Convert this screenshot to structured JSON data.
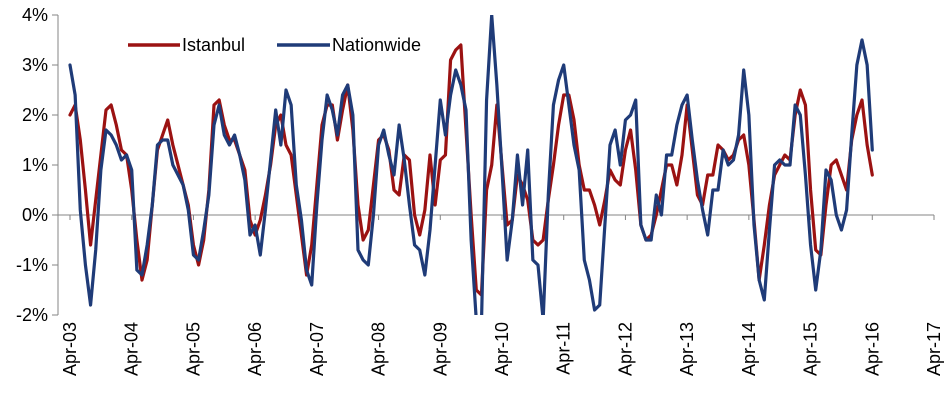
{
  "chart_data": {
    "type": "line",
    "x_tick_labels": [
      "Apr-03",
      "Apr-04",
      "Apr-05",
      "Apr-06",
      "Apr-07",
      "Apr-08",
      "Apr-09",
      "Apr-10",
      "Apr-11",
      "Apr-12",
      "Apr-13",
      "Apr-14",
      "Apr-15",
      "Apr-16",
      "Apr-17"
    ],
    "y_tick_labels": [
      "4%",
      "3%",
      "2%",
      "1%",
      "0%",
      "-1%",
      "-2%"
    ],
    "ylim": [
      -2,
      4
    ],
    "y_unit": "%",
    "grid": false,
    "legend_position": "top-left",
    "series": [
      {
        "name": "Istanbul",
        "color": "#9b1212",
        "values": [
          2.0,
          2.2,
          1.5,
          0.5,
          -0.6,
          0.3,
          1.2,
          2.1,
          2.2,
          1.8,
          1.3,
          1.2,
          0.5,
          -0.5,
          -1.3,
          -0.9,
          0.2,
          1.3,
          1.6,
          1.9,
          1.4,
          1.0,
          0.6,
          0.2,
          -0.6,
          -1.0,
          -0.5,
          0.5,
          2.2,
          2.3,
          1.8,
          1.5,
          1.5,
          1.2,
          0.9,
          -0.1,
          -0.4,
          -0.1,
          0.4,
          1.0,
          1.8,
          2.0,
          1.4,
          1.2,
          0.4,
          -0.4,
          -1.2,
          -0.6,
          0.6,
          1.8,
          2.2,
          2.2,
          1.5,
          2.1,
          2.6,
          1.7,
          0.2,
          -0.5,
          -0.3,
          0.6,
          1.5,
          1.6,
          1.3,
          0.5,
          0.4,
          1.2,
          1.1,
          0.0,
          -0.4,
          0.1,
          1.2,
          0.2,
          1.1,
          1.2,
          3.1,
          3.3,
          3.4,
          1.7,
          0.0,
          -1.5,
          -1.6,
          0.5,
          1.0,
          2.2,
          1.0,
          -0.2,
          -0.1,
          0.8,
          0.6,
          0.3,
          -0.5,
          -0.6,
          -0.5,
          0.3,
          1.0,
          1.8,
          2.4,
          2.4,
          1.9,
          1.0,
          0.5,
          0.5,
          0.2,
          -0.2,
          0.3,
          0.9,
          0.7,
          0.6,
          1.3,
          1.7,
          0.9,
          -0.2,
          -0.5,
          -0.4,
          0.0,
          0.5,
          1.0,
          1.0,
          0.6,
          1.2,
          2.2,
          1.3,
          0.4,
          0.2,
          0.8,
          0.8,
          1.4,
          1.3,
          1.1,
          1.2,
          1.5,
          1.6,
          1.0,
          -0.1,
          -1.3,
          -0.6,
          0.2,
          0.8,
          1.0,
          1.2,
          1.1,
          2.0,
          2.5,
          2.2,
          0.5,
          -0.7,
          -0.8,
          0.2,
          1.0,
          1.1,
          0.8,
          0.5,
          1.5,
          2.0,
          2.3,
          1.4,
          0.8
        ]
      },
      {
        "name": "Nationwide",
        "color": "#1f3b78",
        "values": [
          3.0,
          2.4,
          0.1,
          -1.0,
          -1.8,
          -0.7,
          0.9,
          1.7,
          1.6,
          1.4,
          1.1,
          1.2,
          0.9,
          -1.1,
          -1.2,
          -0.6,
          0.2,
          1.4,
          1.5,
          1.5,
          1.0,
          0.8,
          0.6,
          0.1,
          -0.8,
          -0.9,
          -0.3,
          0.4,
          1.8,
          2.2,
          1.6,
          1.4,
          1.6,
          1.2,
          0.7,
          -0.4,
          -0.2,
          -0.8,
          0.1,
          1.1,
          2.1,
          1.4,
          2.5,
          2.2,
          0.6,
          -0.1,
          -1.1,
          -1.4,
          0.2,
          1.5,
          2.4,
          2.1,
          1.6,
          2.4,
          2.6,
          2.0,
          -0.7,
          -0.9,
          -1.0,
          0.0,
          1.4,
          1.7,
          1.2,
          0.8,
          1.8,
          1.1,
          0.2,
          -0.6,
          -0.7,
          -1.2,
          -0.3,
          1.0,
          2.3,
          1.6,
          2.4,
          2.9,
          2.6,
          2.1,
          -0.5,
          -2.1,
          -2.2,
          2.3,
          4.0,
          2.6,
          0.9,
          -0.9,
          -0.1,
          1.2,
          0.2,
          1.3,
          -0.9,
          -1.0,
          -2.1,
          0.4,
          2.2,
          2.7,
          3.0,
          2.2,
          1.4,
          0.9,
          -0.9,
          -1.3,
          -1.9,
          -1.8,
          -0.2,
          1.4,
          1.7,
          1.0,
          1.9,
          2.0,
          2.3,
          -0.2,
          -0.5,
          -0.5,
          0.4,
          0.0,
          1.2,
          1.2,
          1.8,
          2.2,
          2.4,
          1.5,
          0.7,
          0.1,
          -0.4,
          0.5,
          0.5,
          1.3,
          1.0,
          1.1,
          1.6,
          2.9,
          2.0,
          -0.2,
          -1.3,
          -1.7,
          -0.3,
          1.0,
          1.1,
          1.0,
          1.0,
          2.2,
          2.0,
          0.8,
          -0.6,
          -1.5,
          -0.7,
          0.9,
          0.7,
          0.0,
          -0.3,
          0.1,
          1.6,
          3.0,
          3.5,
          3.0,
          1.3
        ]
      }
    ]
  }
}
